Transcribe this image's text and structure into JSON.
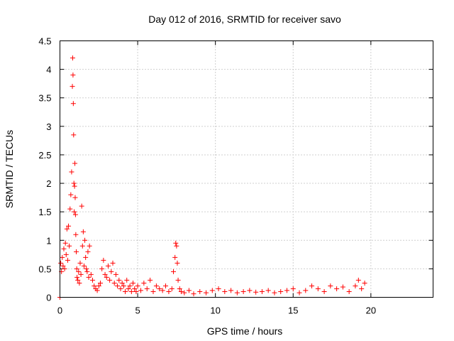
{
  "chart_data": {
    "type": "scatter",
    "title": "Day 012 of 2016, SRMTID for receiver savo",
    "xlabel": "GPS time / hours",
    "ylabel": "SRMTID / TECUs",
    "xlim": [
      0,
      24
    ],
    "ylim": [
      0,
      4.5
    ],
    "xticks": [
      0,
      5,
      10,
      15,
      20
    ],
    "xtick_labels": [
      "0",
      "5",
      "10",
      "15",
      "20"
    ],
    "yticks": [
      0,
      0.5,
      1,
      1.5,
      2,
      2.5,
      3,
      3.5,
      4,
      4.5
    ],
    "ytick_labels": [
      "0",
      "0.5",
      "1",
      "1.5",
      "2",
      "2.5",
      "3",
      "3.5",
      "4",
      "4.5"
    ],
    "grid": true,
    "marker": "+",
    "series": [
      {
        "name": "SRMTID",
        "color": "#ff0000",
        "x": [
          0.0,
          0.05,
          0.1,
          0.15,
          0.2,
          0.25,
          0.3,
          0.35,
          0.4,
          0.45,
          0.5,
          0.55,
          0.6,
          0.65,
          0.7,
          0.75,
          0.8,
          0.82,
          0.84,
          0.86,
          0.88,
          0.9,
          0.92,
          0.94,
          0.96,
          0.98,
          1.0,
          1.02,
          1.05,
          1.08,
          1.1,
          1.15,
          1.2,
          1.25,
          1.3,
          1.35,
          1.4,
          1.45,
          1.5,
          1.55,
          1.6,
          1.65,
          1.7,
          1.75,
          1.8,
          1.85,
          1.9,
          2.0,
          2.1,
          2.2,
          2.3,
          2.4,
          2.5,
          2.6,
          2.7,
          2.8,
          2.9,
          3.0,
          3.1,
          3.2,
          3.3,
          3.4,
          3.5,
          3.6,
          3.7,
          3.8,
          3.9,
          4.0,
          4.1,
          4.2,
          4.3,
          4.4,
          4.5,
          4.6,
          4.7,
          4.8,
          4.9,
          5.0,
          5.2,
          5.4,
          5.6,
          5.8,
          6.0,
          6.2,
          6.4,
          6.6,
          6.8,
          7.0,
          7.2,
          7.3,
          7.4,
          7.45,
          7.5,
          7.55,
          7.6,
          7.7,
          7.8,
          8.0,
          8.3,
          8.6,
          9.0,
          9.4,
          9.8,
          10.2,
          10.6,
          11.0,
          11.4,
          11.8,
          12.2,
          12.6,
          13.0,
          13.4,
          13.8,
          14.2,
          14.6,
          15.0,
          15.4,
          15.8,
          16.2,
          16.6,
          17.0,
          17.4,
          17.8,
          18.2,
          18.6,
          19.0,
          19.2,
          19.4,
          19.6
        ],
        "y": [
          0.0,
          0.6,
          0.45,
          0.7,
          0.55,
          0.85,
          0.5,
          0.95,
          0.75,
          1.2,
          0.65,
          1.25,
          0.9,
          1.55,
          1.8,
          2.2,
          3.7,
          4.2,
          3.9,
          3.4,
          2.85,
          2.0,
          1.5,
          1.95,
          2.35,
          1.75,
          1.45,
          1.1,
          0.8,
          0.5,
          0.35,
          0.3,
          0.45,
          0.25,
          0.6,
          0.4,
          1.6,
          0.9,
          1.15,
          0.55,
          1.0,
          0.7,
          0.5,
          0.45,
          0.8,
          0.35,
          0.9,
          0.4,
          0.3,
          0.2,
          0.15,
          0.12,
          0.2,
          0.25,
          0.5,
          0.65,
          0.4,
          0.35,
          0.55,
          0.3,
          0.45,
          0.6,
          0.25,
          0.4,
          0.2,
          0.3,
          0.15,
          0.25,
          0.2,
          0.1,
          0.3,
          0.15,
          0.2,
          0.1,
          0.25,
          0.15,
          0.1,
          0.2,
          0.12,
          0.25,
          0.15,
          0.3,
          0.1,
          0.2,
          0.15,
          0.12,
          0.2,
          0.1,
          0.15,
          0.45,
          0.7,
          0.95,
          0.9,
          0.6,
          0.3,
          0.15,
          0.1,
          0.08,
          0.12,
          0.06,
          0.1,
          0.08,
          0.12,
          0.15,
          0.1,
          0.12,
          0.08,
          0.1,
          0.12,
          0.09,
          0.1,
          0.12,
          0.08,
          0.1,
          0.12,
          0.15,
          0.08,
          0.12,
          0.2,
          0.15,
          0.1,
          0.2,
          0.15,
          0.18,
          0.1,
          0.2,
          0.3,
          0.15,
          0.25
        ]
      }
    ]
  }
}
